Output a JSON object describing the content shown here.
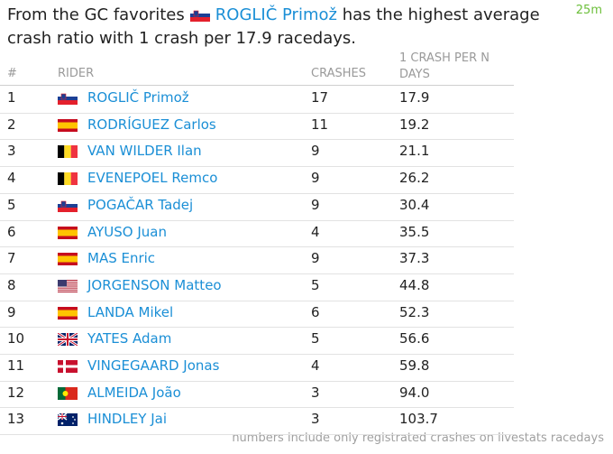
{
  "header": {
    "text_before": "From the GC favorites",
    "rider": "ROGLIČ Primož",
    "text_after_line1": "has the highest average",
    "text_after_line2": "crash ratio with 1 crash per 17.9 racedays.",
    "time": "25m"
  },
  "table": {
    "columns": [
      "#",
      "RIDER",
      "CRASHES",
      "1 CRASH PER N DAYS"
    ],
    "rows": [
      [
        "1",
        "ROGLIČ Primož",
        "17",
        "17.9"
      ],
      [
        "2",
        "RODRÍGUEZ Carlos",
        "11",
        "19.2"
      ],
      [
        "3",
        "VAN WILDER Ilan",
        "9",
        "21.1"
      ],
      [
        "4",
        "EVENEPOEL Remco",
        "9",
        "26.2"
      ],
      [
        "5",
        "POGAČAR Tadej",
        "9",
        "30.4"
      ],
      [
        "6",
        "AYUSO Juan",
        "4",
        "35.5"
      ],
      [
        "7",
        "MAS Enric",
        "9",
        "37.3"
      ],
      [
        "8",
        "JORGENSON Matteo",
        "5",
        "44.8"
      ],
      [
        "9",
        "LANDA Mikel",
        "6",
        "52.3"
      ],
      [
        "10",
        "YATES Adam",
        "5",
        "56.6"
      ],
      [
        "11",
        "VINGEGAARD Jonas",
        "4",
        "59.8"
      ],
      [
        "12",
        "ALMEIDA João",
        "3",
        "94.0"
      ],
      [
        "13",
        "HINDLEY Jai",
        "3",
        "103.7"
      ]
    ]
  },
  "footer": {
    "note": "numbers include only registrated crashes on livestats racedays"
  }
}
